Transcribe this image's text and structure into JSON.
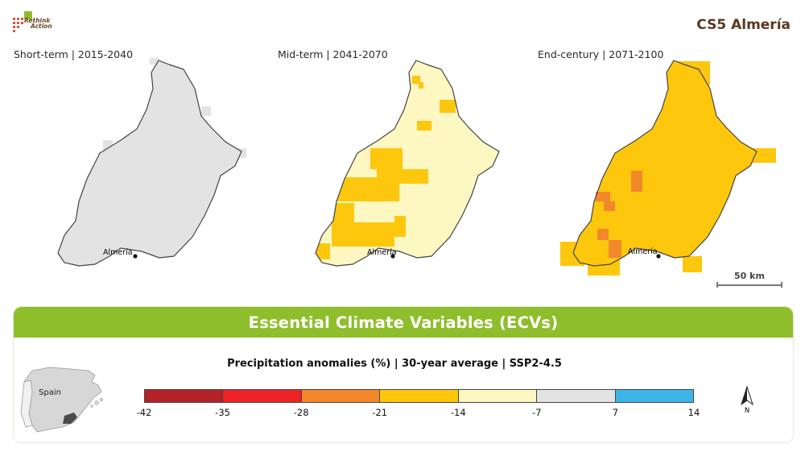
{
  "header": {
    "logo_text_line1": "Rethink",
    "logo_text_line2": "Action",
    "case_study_title": "CS5 Almería"
  },
  "maps": [
    {
      "label": "Short-term | 2015-2040",
      "city": "Almería"
    },
    {
      "label": "Mid-term | 2041-2070",
      "city": "Almería"
    },
    {
      "label": "End-century | 2071-2100",
      "city": "Almería"
    }
  ],
  "scale_bar": {
    "label": "50 km"
  },
  "section": {
    "banner_title": "Essential Climate Variables (ECVs)"
  },
  "legend": {
    "title": "Precipitation anomalies (%) | 30-year average | SSP2-4.5",
    "ticks": [
      "-42",
      "-35",
      "-28",
      "-21",
      "-14",
      "-7",
      "7",
      "14"
    ],
    "colors": [
      "#b22226",
      "#ee2325",
      "#f2882a",
      "#fdc70e",
      "#fdf7c2",
      "#e3e3e3",
      "#3cb5ea"
    ]
  },
  "inset": {
    "country_label": "Spain"
  },
  "north_arrow": {
    "label": "N"
  },
  "colors": {
    "banner": "#8fbe2d",
    "title": "#5b3820",
    "outline": "#444444"
  }
}
